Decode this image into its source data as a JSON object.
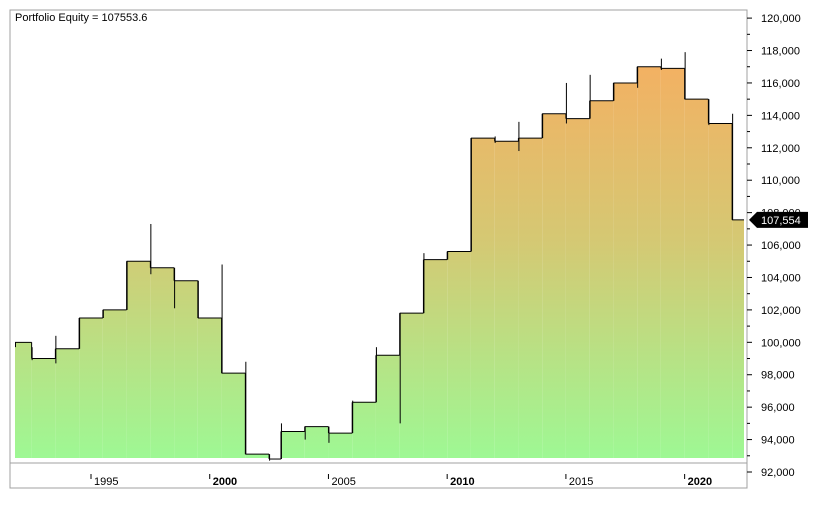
{
  "chart_data": {
    "type": "area",
    "title": "Portfolio Equity = 107553.6",
    "last_value_label": "107,554",
    "xlabel": "",
    "ylabel": "",
    "xlim": [
      1991.8,
      2022.5
    ],
    "ylim": [
      92000,
      120500
    ],
    "grid": false,
    "legend": "none",
    "colors": {
      "bottom": "#9ef894",
      "middle": "#d5c873",
      "top": "#f4b062",
      "line": "#000000",
      "label_bg": "#000000"
    },
    "y_ticks": [
      {
        "value": 92000,
        "label": "92,000"
      },
      {
        "value": 94000,
        "label": "94,000"
      },
      {
        "value": 96000,
        "label": "96,000"
      },
      {
        "value": 98000,
        "label": "98,000"
      },
      {
        "value": 100000,
        "label": "100,000"
      },
      {
        "value": 102000,
        "label": "102,000"
      },
      {
        "value": 104000,
        "label": "104,000"
      },
      {
        "value": 106000,
        "label": "106,000"
      },
      {
        "value": 108000,
        "label": "108,000"
      },
      {
        "value": 110000,
        "label": "110,000"
      },
      {
        "value": 112000,
        "label": "112,000"
      },
      {
        "value": 114000,
        "label": "114,000"
      },
      {
        "value": 116000,
        "label": "116,000"
      },
      {
        "value": 118000,
        "label": "118,000"
      },
      {
        "value": 120000,
        "label": "120,000"
      }
    ],
    "x_ticks": [
      {
        "value": 1995,
        "label": "1995",
        "major": false
      },
      {
        "value": 2000,
        "label": "2000",
        "major": true
      },
      {
        "value": 2005,
        "label": "2005",
        "major": false
      },
      {
        "value": 2010,
        "label": "2010",
        "major": true
      },
      {
        "value": 2015,
        "label": "2015",
        "major": false
      },
      {
        "value": 2020,
        "label": "2020",
        "major": true
      }
    ],
    "series": [
      {
        "values": [
          {
            "x": 1991.8,
            "y": 100000,
            "high": 100000,
            "low": 99700
          },
          {
            "x": 1992.5,
            "y": 99000,
            "high": 99700,
            "low": 98900
          },
          {
            "x": 1993.5,
            "y": 99600,
            "high": 100400,
            "low": 98700
          },
          {
            "x": 1994.5,
            "y": 101500,
            "high": 101500,
            "low": 99600
          },
          {
            "x": 1995.5,
            "y": 102000,
            "high": 102000,
            "low": 101500
          },
          {
            "x": 1996.5,
            "y": 105000,
            "high": 105000,
            "low": 102000
          },
          {
            "x": 1997.5,
            "y": 104600,
            "high": 107300,
            "low": 104200
          },
          {
            "x": 1998.5,
            "y": 103800,
            "high": 104600,
            "low": 102100
          },
          {
            "x": 1999.5,
            "y": 101500,
            "high": 103800,
            "low": 101500
          },
          {
            "x": 2000.5,
            "y": 98100,
            "high": 104800,
            "low": 98100
          },
          {
            "x": 2001.5,
            "y": 93100,
            "high": 98800,
            "low": 93100
          },
          {
            "x": 2002.5,
            "y": 92800,
            "high": 93100,
            "low": 92700
          },
          {
            "x": 2003.0,
            "y": 94500,
            "high": 95000,
            "low": 92800
          },
          {
            "x": 2004.0,
            "y": 94800,
            "high": 94800,
            "low": 94000
          },
          {
            "x": 2005.0,
            "y": 94400,
            "high": 94800,
            "low": 93800
          },
          {
            "x": 2006.0,
            "y": 96300,
            "high": 96400,
            "low": 94400
          },
          {
            "x": 2007.0,
            "y": 99200,
            "high": 99700,
            "low": 96300
          },
          {
            "x": 2008.0,
            "y": 101800,
            "high": 101800,
            "low": 95000
          },
          {
            "x": 2009.0,
            "y": 105100,
            "high": 105500,
            "low": 101800
          },
          {
            "x": 2010.0,
            "y": 105600,
            "high": 105600,
            "low": 105100
          },
          {
            "x": 2011.0,
            "y": 112600,
            "high": 112600,
            "low": 105600
          },
          {
            "x": 2012.0,
            "y": 112400,
            "high": 112700,
            "low": 112300
          },
          {
            "x": 2013.0,
            "y": 112600,
            "high": 113600,
            "low": 111800
          },
          {
            "x": 2014.0,
            "y": 114100,
            "high": 114100,
            "low": 112600
          },
          {
            "x": 2015.0,
            "y": 113800,
            "high": 116000,
            "low": 113500
          },
          {
            "x": 2016.0,
            "y": 114900,
            "high": 116500,
            "low": 113800
          },
          {
            "x": 2017.0,
            "y": 116000,
            "high": 116000,
            "low": 114900
          },
          {
            "x": 2018.0,
            "y": 117000,
            "high": 117000,
            "low": 115700
          },
          {
            "x": 2019.0,
            "y": 116900,
            "high": 117500,
            "low": 116800
          },
          {
            "x": 2020.0,
            "y": 115000,
            "high": 117900,
            "low": 115000
          },
          {
            "x": 2021.0,
            "y": 113500,
            "high": 115000,
            "low": 113400
          },
          {
            "x": 2022.0,
            "y": 107554,
            "high": 114100,
            "low": 107554
          }
        ]
      }
    ]
  }
}
